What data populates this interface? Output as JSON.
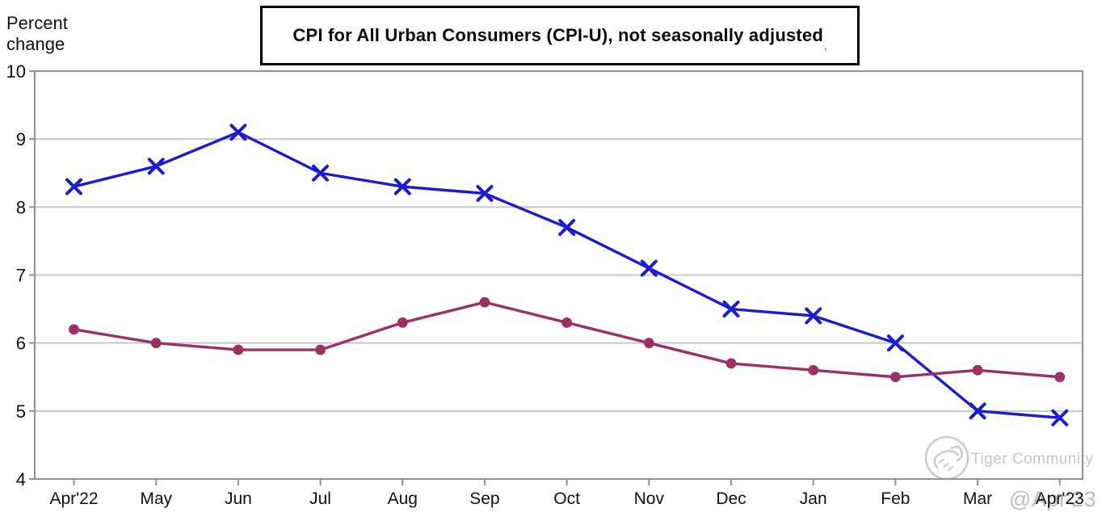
{
  "header": {
    "y_axis_title": "Percent\nchange",
    "title": "CPI for All Urban Consumers (CPI-U), not seasonally adjusted",
    "title_footnote_mark": ","
  },
  "watermark": {
    "brand": "Tiger Community",
    "handle": "@Apr'23"
  },
  "colors": {
    "blue_series": "#1b1bd0",
    "maroon_series": "#9c2f63",
    "gridline": "#c8c8c8",
    "axis_border": "#919191",
    "watermark_gray": "#c6c6c6",
    "text": "#111111"
  },
  "chart_data": {
    "type": "line",
    "title": "CPI for All Urban Consumers (CPI-U), not seasonally adjusted",
    "ylabel": "Percent change",
    "ylim": [
      4,
      10
    ],
    "y_ticks": [
      10,
      9,
      8,
      7,
      6,
      5,
      4
    ],
    "grid": "horizontal",
    "legend_position": "none",
    "categories": [
      "Apr'22",
      "May",
      "Jun",
      "Jul",
      "Aug",
      "Sep",
      "Oct",
      "Nov",
      "Dec",
      "Jan",
      "Feb",
      "Mar",
      "Apr'23"
    ],
    "series": [
      {
        "name": "blue-x-series",
        "marker": "x",
        "color": "#1b1bd0",
        "values": [
          8.3,
          8.6,
          9.1,
          8.5,
          8.3,
          8.2,
          7.7,
          7.1,
          6.5,
          6.4,
          6.0,
          5.0,
          4.9
        ]
      },
      {
        "name": "maroon-dot-series",
        "marker": "circle",
        "color": "#9c2f63",
        "values": [
          6.2,
          6.0,
          5.9,
          5.9,
          6.3,
          6.6,
          6.3,
          6.0,
          5.7,
          5.6,
          5.5,
          5.6,
          5.5
        ]
      }
    ]
  }
}
